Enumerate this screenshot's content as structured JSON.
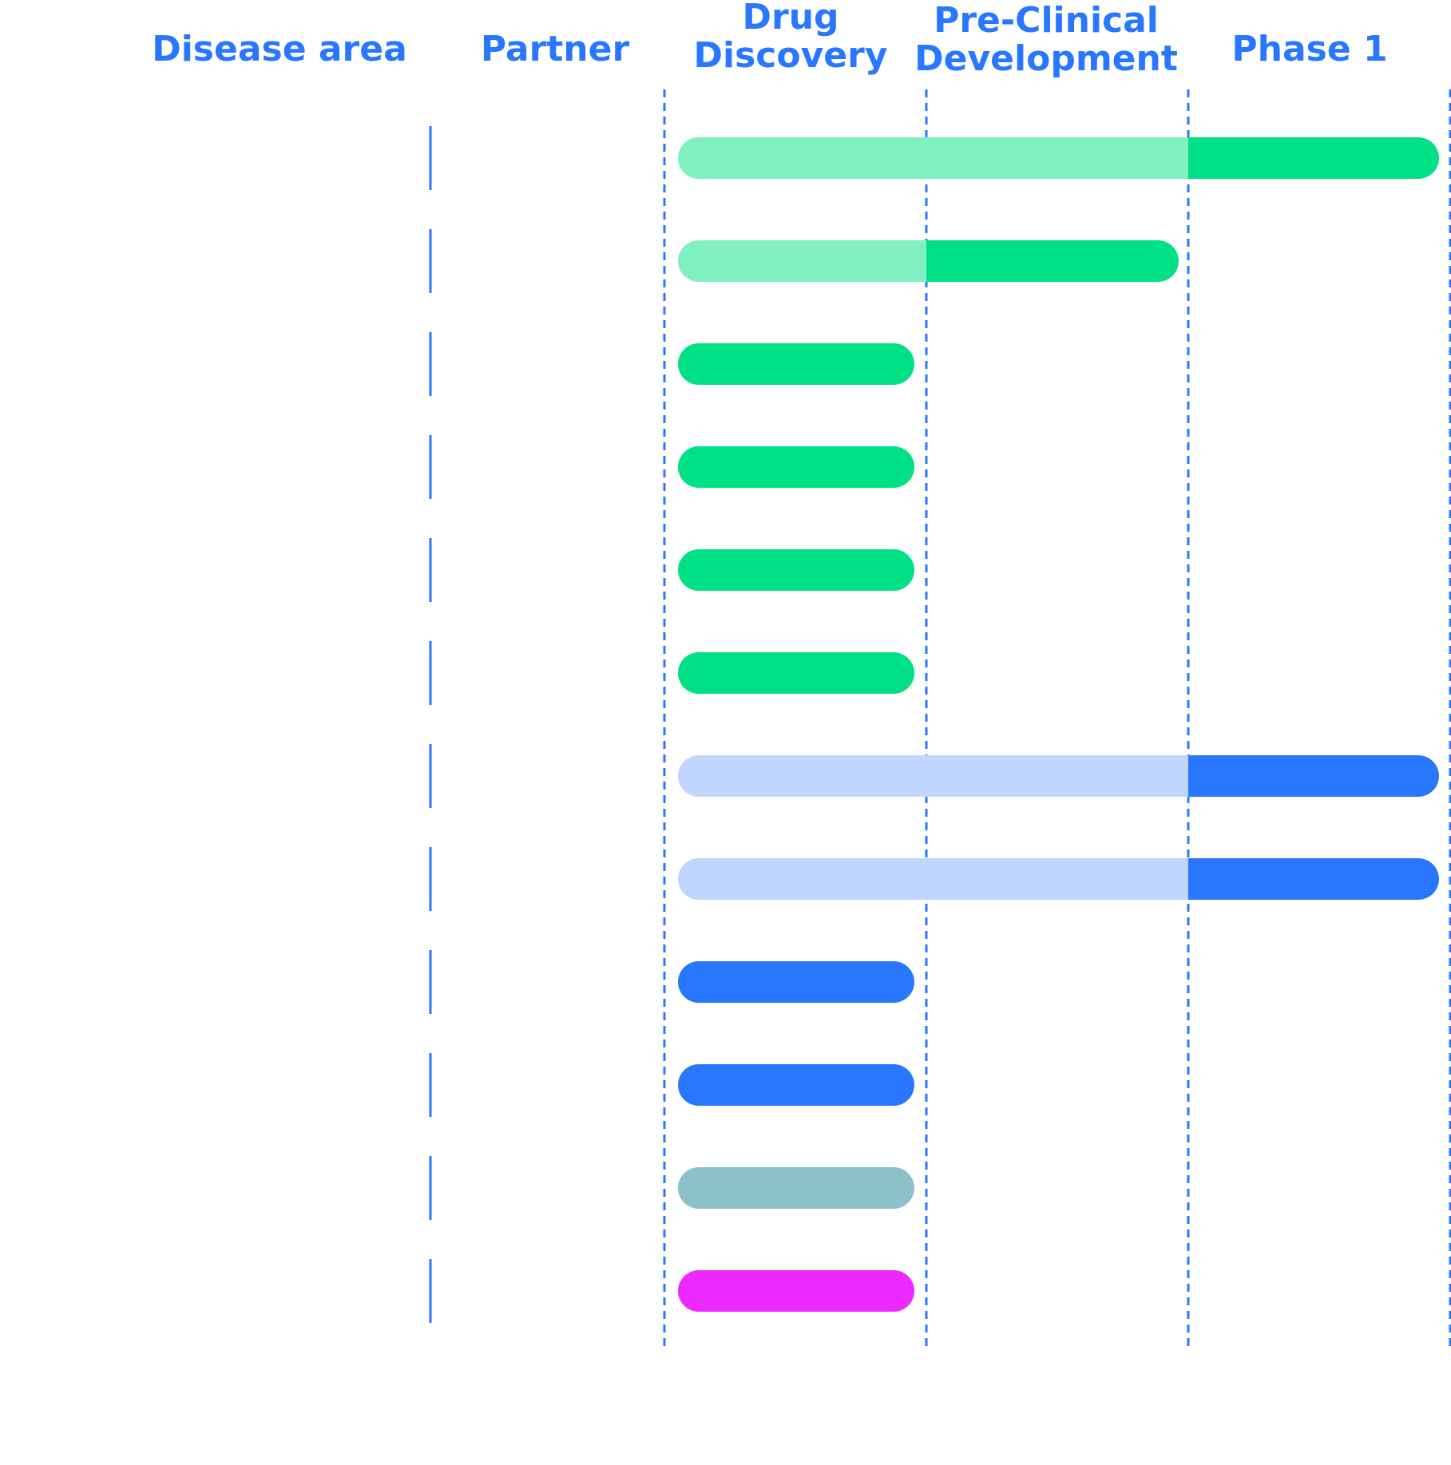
{
  "colors": {
    "accent": "#2977ff",
    "green": "#00e085",
    "green_light": "#80efc2",
    "blue": "#2977ff",
    "blue_light": "#c0d6ff",
    "teal": "#8cc1c9",
    "magenta": "#ec2aff"
  },
  "headers": {
    "disease_area": "Disease area",
    "partner": "Partner",
    "drug_discovery": [
      "Drug",
      "Discovery"
    ],
    "preclinical": [
      "Pre-Clinical",
      "Development"
    ],
    "phase1": "Phase 1"
  },
  "chart_data": {
    "type": "bar",
    "orientation": "horizontal",
    "stages": [
      "Drug Discovery",
      "Pre-Clinical Development",
      "Phase 1"
    ],
    "rows": [
      {
        "completed_stages": 2,
        "current_stage": 3,
        "color": "green"
      },
      {
        "completed_stages": 1,
        "current_stage": 2,
        "color": "green"
      },
      {
        "completed_stages": 0,
        "current_stage": 1,
        "color": "green"
      },
      {
        "completed_stages": 0,
        "current_stage": 1,
        "color": "green"
      },
      {
        "completed_stages": 0,
        "current_stage": 1,
        "color": "green"
      },
      {
        "completed_stages": 0,
        "current_stage": 1,
        "color": "green"
      },
      {
        "completed_stages": 2,
        "current_stage": 3,
        "color": "blue"
      },
      {
        "completed_stages": 2,
        "current_stage": 3,
        "color": "blue"
      },
      {
        "completed_stages": 0,
        "current_stage": 1,
        "color": "blue"
      },
      {
        "completed_stages": 0,
        "current_stage": 1,
        "color": "blue"
      },
      {
        "completed_stages": 0,
        "current_stage": 1,
        "color": "teal"
      },
      {
        "completed_stages": 0,
        "current_stage": 1,
        "color": "magenta"
      }
    ]
  }
}
